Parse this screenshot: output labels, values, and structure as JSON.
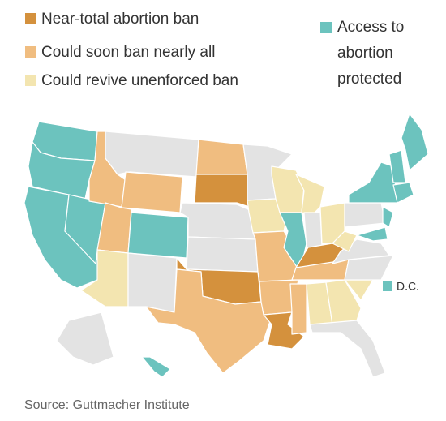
{
  "legend": [
    {
      "label": "Near-total abortion ban",
      "color": "#d4913d"
    },
    {
      "label": "Could soon ban nearly all",
      "color": "#f0bd80"
    },
    {
      "label": "Could revive unenforced ban",
      "color": "#f3e5b0"
    },
    {
      "label_lines": [
        "Access to",
        "abortion",
        "protected"
      ],
      "color": "#6cc3be"
    }
  ],
  "dc_label": "D.C.",
  "source": "Source: Guttmacher Institute"
}
